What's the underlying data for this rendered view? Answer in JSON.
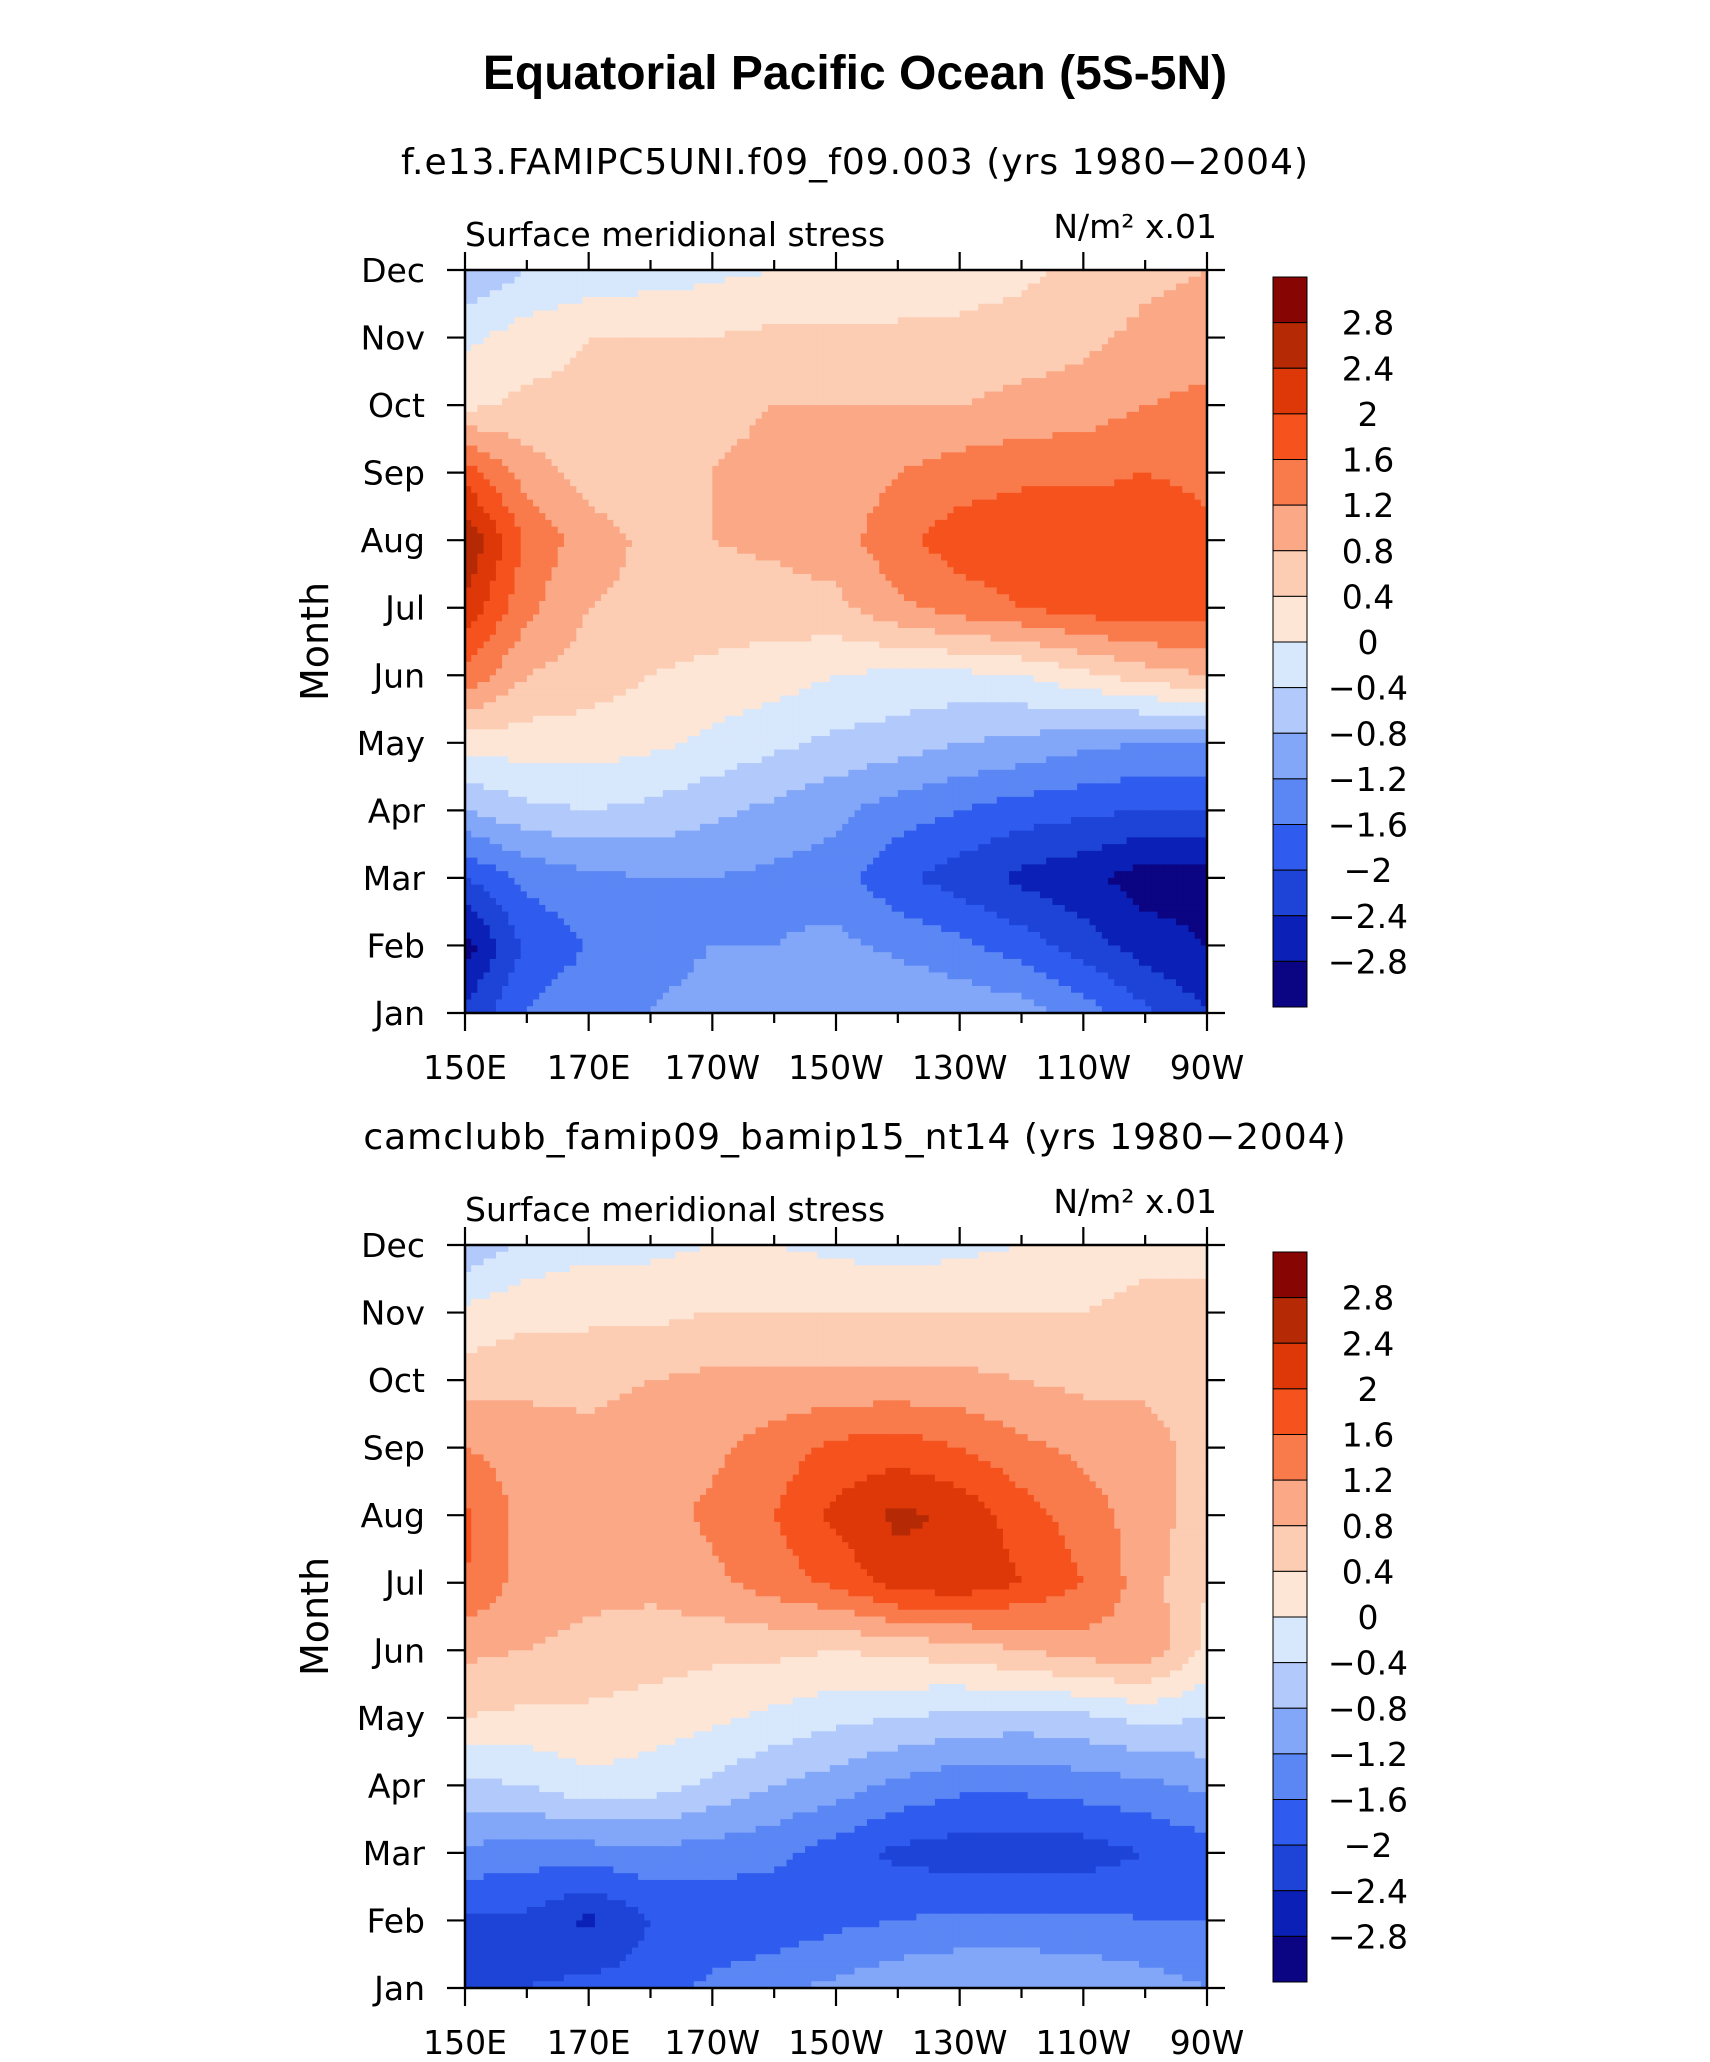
{
  "title": "Equatorial Pacific Ocean (5S-5N)",
  "colors": {
    "levels": [
      -2.8,
      -2.4,
      -2,
      -1.6,
      -1.2,
      -0.8,
      -0.4,
      0,
      0.4,
      0.8,
      1.2,
      1.6,
      2,
      2.4,
      2.8
    ],
    "palette": [
      "#0b0583",
      "#0a20b6",
      "#1d44d6",
      "#2f5cee",
      "#5b87f5",
      "#83a7f8",
      "#b2c9fb",
      "#d7e7fc",
      "#fde6d6",
      "#fcccb3",
      "#fba886",
      "#f97a4b",
      "#f5521e",
      "#de3808",
      "#b52a05",
      "#870604"
    ]
  },
  "chart_data": [
    {
      "type": "heatmap",
      "subtitle": "f.e13.FAMIPC5UNI.f09_f09.003 (yrs 1980−2004)",
      "variable_label": "Surface meridional stress",
      "units": "N/m² x.01",
      "xlabel": "",
      "ylabel": "Month",
      "x_axis": {
        "range": [
          150,
          270
        ],
        "tick_values": [
          150,
          170,
          190,
          210,
          230,
          250,
          270
        ],
        "tick_labels": [
          "150E",
          "170E",
          "170W",
          "150W",
          "130W",
          "110W",
          "90W"
        ]
      },
      "y_axis": {
        "tick_labels": [
          "Jan",
          "Feb",
          "Mar",
          "Apr",
          "May",
          "Jun",
          "Jul",
          "Aug",
          "Sep",
          "Oct",
          "Nov",
          "Dec"
        ]
      },
      "colorbar": {
        "tick_labels": [
          "2.8",
          "2.4",
          "2",
          "1.6",
          "1.2",
          "0.8",
          "0.4",
          "0",
          "−0.4",
          "−0.8",
          "−1.2",
          "−1.6",
          "−2",
          "−2.4",
          "−2.8"
        ]
      },
      "x": [
        150,
        160,
        170,
        180,
        190,
        200,
        210,
        220,
        230,
        240,
        250,
        260,
        270
      ],
      "y": [
        "Jan",
        "Feb",
        "Mar",
        "Apr",
        "May",
        "Jun",
        "Jul",
        "Aug",
        "Sep",
        "Oct",
        "Nov",
        "Dec"
      ],
      "z": [
        [
          -2.3,
          -1.6,
          -1.3,
          -1.2,
          -1.1,
          -0.9,
          -0.8,
          -0.8,
          -0.9,
          -1.0,
          -1.4,
          -1.9,
          -2.4
        ],
        [
          -3.0,
          -1.9,
          -1.6,
          -1.3,
          -1.2,
          -1.2,
          -1.1,
          -1.3,
          -1.5,
          -1.8,
          -2.2,
          -2.6,
          -2.8
        ],
        [
          -2.0,
          -1.5,
          -1.3,
          -1.2,
          -1.2,
          -1.3,
          -1.4,
          -1.9,
          -2.2,
          -2.5,
          -2.7,
          -3.0,
          -3.0
        ],
        [
          -0.8,
          -0.5,
          -0.4,
          -0.5,
          -0.7,
          -0.9,
          -1.1,
          -1.4,
          -1.6,
          -1.8,
          -1.9,
          -2.0,
          -2.0
        ],
        [
          0.2,
          0.2,
          0.2,
          0.1,
          -0.1,
          -0.3,
          -0.5,
          -0.6,
          -0.8,
          -0.9,
          -1.1,
          -1.2,
          -1.2
        ],
        [
          1.5,
          0.8,
          0.6,
          0.4,
          0.3,
          0.2,
          0.0,
          -0.1,
          -0.1,
          0.0,
          0.3,
          0.6,
          0.8
        ],
        [
          2.3,
          1.3,
          0.8,
          0.7,
          0.6,
          0.6,
          0.7,
          1.1,
          1.4,
          1.6,
          1.8,
          1.9,
          1.8
        ],
        [
          2.8,
          1.5,
          1.0,
          0.7,
          0.8,
          0.9,
          1.0,
          1.5,
          1.8,
          1.9,
          1.9,
          1.9,
          1.7
        ],
        [
          1.8,
          1.0,
          0.6,
          0.6,
          0.8,
          0.9,
          0.9,
          1.2,
          1.4,
          1.5,
          1.5,
          1.6,
          1.5
        ],
        [
          0.3,
          0.5,
          0.5,
          0.6,
          0.7,
          0.8,
          0.8,
          0.8,
          0.8,
          0.9,
          1.0,
          1.2,
          1.3
        ],
        [
          -0.1,
          0.2,
          0.4,
          0.4,
          0.4,
          0.5,
          0.5,
          0.5,
          0.5,
          0.6,
          0.7,
          0.9,
          1.0
        ],
        [
          -0.8,
          -0.4,
          -0.3,
          -0.2,
          -0.1,
          0.0,
          0.0,
          0.1,
          0.2,
          0.3,
          0.5,
          0.7,
          0.8
        ]
      ]
    },
    {
      "type": "heatmap",
      "subtitle": "camclubb_famip09_bamip15_nt14 (yrs 1980−2004)",
      "variable_label": "Surface meridional stress",
      "units": "N/m² x.01",
      "xlabel": "",
      "ylabel": "Month",
      "x_axis": {
        "range": [
          150,
          270
        ],
        "tick_values": [
          150,
          170,
          190,
          210,
          230,
          250,
          270
        ],
        "tick_labels": [
          "150E",
          "170E",
          "170W",
          "150W",
          "130W",
          "110W",
          "90W"
        ]
      },
      "y_axis": {
        "tick_labels": [
          "Jan",
          "Feb",
          "Mar",
          "Apr",
          "May",
          "Jun",
          "Jul",
          "Aug",
          "Sep",
          "Oct",
          "Nov",
          "Dec"
        ]
      },
      "colorbar": {
        "tick_labels": [
          "2.8",
          "2.4",
          "2",
          "1.6",
          "1.2",
          "0.8",
          "0.4",
          "0",
          "−0.4",
          "−0.8",
          "−1.2",
          "−1.6",
          "−2",
          "−2.4",
          "−2.8"
        ]
      },
      "x": [
        150,
        160,
        170,
        180,
        190,
        200,
        210,
        220,
        230,
        240,
        250,
        260,
        270
      ],
      "y": [
        "Jan",
        "Feb",
        "Mar",
        "Apr",
        "May",
        "Jun",
        "Jul",
        "Aug",
        "Sep",
        "Oct",
        "Nov",
        "Dec"
      ],
      "z": [
        [
          -2.2,
          -2.0,
          -1.9,
          -1.8,
          -1.5,
          -1.3,
          -1.1,
          -0.9,
          -0.8,
          -0.8,
          -0.9,
          -1.0,
          -1.2
        ],
        [
          -2.1,
          -2.1,
          -2.5,
          -2.0,
          -1.9,
          -1.9,
          -1.7,
          -1.6,
          -1.5,
          -1.5,
          -1.5,
          -1.6,
          -1.6
        ],
        [
          -1.3,
          -1.4,
          -1.4,
          -1.3,
          -1.4,
          -1.5,
          -1.8,
          -2.1,
          -2.2,
          -2.2,
          -2.2,
          -2.0,
          -1.8
        ],
        [
          -0.5,
          -0.4,
          -0.1,
          -0.2,
          -0.5,
          -0.8,
          -1.0,
          -1.3,
          -1.5,
          -1.5,
          -1.4,
          -1.3,
          -1.1
        ],
        [
          0.4,
          0.3,
          0.3,
          0.2,
          0.1,
          -0.1,
          -0.3,
          -0.4,
          -0.5,
          -0.6,
          -0.5,
          -0.3,
          -0.4
        ],
        [
          0.9,
          0.8,
          0.7,
          0.6,
          0.5,
          0.5,
          0.4,
          0.5,
          0.6,
          0.8,
          1.0,
          1.1,
          0.3
        ],
        [
          1.6,
          1.0,
          0.9,
          0.9,
          1.1,
          1.4,
          1.7,
          2.2,
          2.3,
          2.0,
          1.6,
          1.0,
          0.4
        ],
        [
          1.7,
          1.0,
          0.9,
          1.0,
          1.3,
          1.6,
          2.1,
          2.5,
          2.3,
          1.8,
          1.4,
          1.0,
          0.6
        ],
        [
          1.2,
          1.0,
          0.9,
          1.0,
          1.1,
          1.4,
          1.7,
          1.8,
          1.6,
          1.3,
          1.1,
          1.0,
          0.6
        ],
        [
          0.6,
          0.7,
          0.7,
          0.8,
          0.9,
          0.9,
          0.9,
          0.9,
          0.9,
          0.8,
          0.7,
          0.7,
          0.6
        ],
        [
          0.1,
          0.3,
          0.3,
          0.3,
          0.4,
          0.4,
          0.4,
          0.4,
          0.4,
          0.4,
          0.4,
          0.5,
          0.4
        ],
        [
          -0.7,
          -0.3,
          -0.1,
          -0.1,
          0.0,
          0.0,
          -0.1,
          -0.2,
          -0.1,
          0.0,
          0.2,
          0.3,
          0.4
        ]
      ]
    }
  ]
}
